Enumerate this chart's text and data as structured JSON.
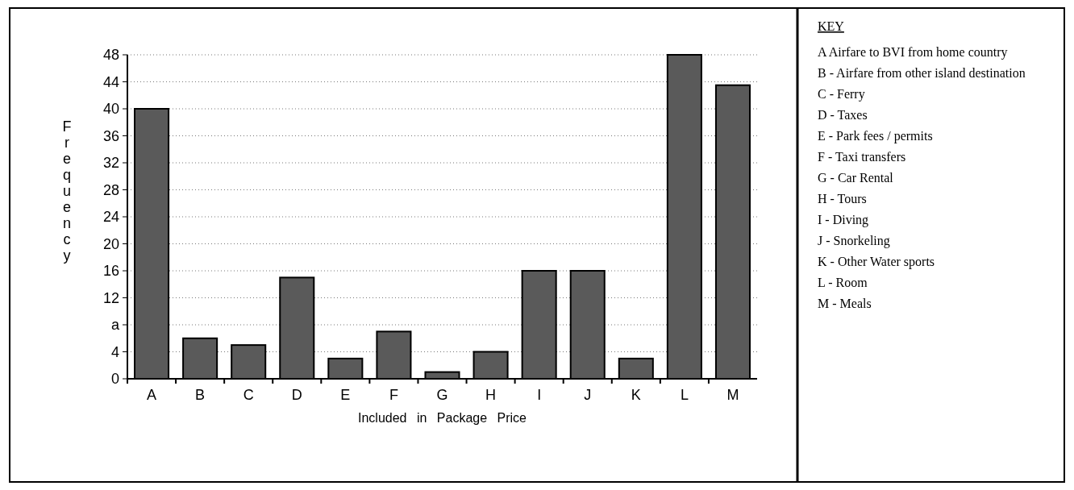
{
  "chart_data": {
    "type": "bar",
    "xlabel": "Included in Package Price",
    "ylabel": "Frequency",
    "categories": [
      "A",
      "B",
      "C",
      "D",
      "E",
      "F",
      "G",
      "H",
      "I",
      "J",
      "K",
      "L",
      "M"
    ],
    "values": [
      40,
      6,
      5,
      15,
      3,
      7,
      1,
      4,
      16,
      16,
      3,
      48,
      43.5
    ],
    "color": "#5a5a5a",
    "ylim": [
      0,
      48
    ],
    "yticks": [
      0,
      4,
      {
        "value": 8,
        "label": "a"
      },
      12,
      16,
      20,
      24,
      28,
      32,
      36,
      40,
      44,
      48
    ],
    "grid": "y",
    "annotations": [
      "KEY",
      "A  Airfare to BVI from home country",
      "B - Airfare from other island destination",
      "C - Ferry",
      "D - Taxes",
      "E - Park fees / permits",
      "F - Taxi transfers",
      "G - Car Rental",
      "H - Tours",
      "I - Diving",
      "J - Snorkeling",
      "K - Other Water sports",
      "L - Room",
      "M - Meals"
    ]
  }
}
